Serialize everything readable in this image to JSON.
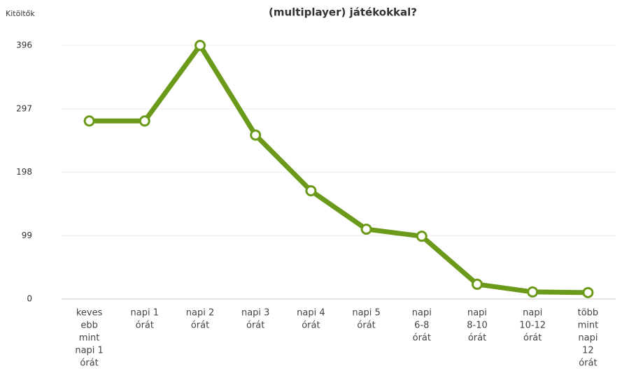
{
  "chart_data": {
    "type": "line",
    "title": "(multiplayer) játékokkal?",
    "y_axis_label": "Kitöltők",
    "categories": [
      [
        "keves",
        "ebb",
        "mint",
        "napi 1",
        "órát"
      ],
      [
        "napi 1",
        "órát"
      ],
      [
        "napi 2",
        "órát"
      ],
      [
        "napi 3",
        "órát"
      ],
      [
        "napi 4",
        "órát"
      ],
      [
        "napi 5",
        "órát"
      ],
      [
        "napi",
        "6-8",
        "órát"
      ],
      [
        "napi",
        "8-10",
        "órát"
      ],
      [
        "napi",
        "10-12",
        "órát"
      ],
      [
        "több",
        "mint",
        "napi",
        "12",
        "órát"
      ]
    ],
    "series": [
      {
        "name": "Kitöltők",
        "color": "#6b9a1a",
        "values": [
          278,
          278,
          396,
          256,
          169,
          109,
          98,
          23,
          11,
          10
        ]
      }
    ],
    "ylim": [
      0,
      396
    ],
    "yticks": [
      0,
      99,
      198,
      297,
      396
    ],
    "grid": true
  }
}
